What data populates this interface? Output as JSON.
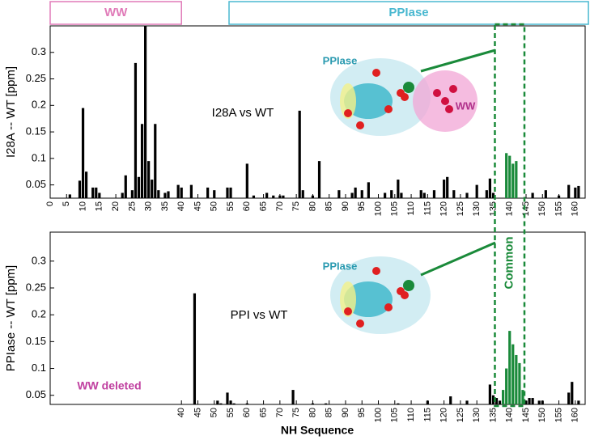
{
  "chart_data": [
    {
      "type": "bar",
      "ylabel": "I28A -- WT  [ppm]",
      "xlim": [
        0,
        163
      ],
      "ylim": [
        0.025,
        0.35
      ],
      "xticks": [
        0,
        5,
        10,
        15,
        20,
        25,
        30,
        35,
        40,
        45,
        50,
        55,
        60,
        65,
        70,
        75,
        80,
        85,
        90,
        95,
        100,
        105,
        110,
        115,
        120,
        125,
        130,
        135,
        140,
        145,
        150,
        155,
        160
      ],
      "yticks": [
        0.05,
        0.1,
        0.15,
        0.2,
        0.25,
        0.3
      ],
      "series": [
        {
          "color": "#000000",
          "x": [
            6,
            9,
            10,
            11,
            13,
            14,
            15,
            22,
            23,
            25,
            26,
            27,
            28,
            29,
            30,
            31,
            32,
            33,
            35,
            36,
            39,
            40,
            43,
            48,
            50,
            54,
            55,
            60,
            62,
            66,
            68,
            70,
            71,
            76,
            77,
            80,
            82,
            88,
            92,
            93,
            95,
            97,
            102,
            104,
            106,
            107,
            113,
            114,
            117,
            120,
            121,
            123,
            127,
            130,
            133,
            134,
            135,
            147,
            151,
            155,
            158,
            160,
            161
          ],
          "values": [
            0.032,
            0.058,
            0.195,
            0.075,
            0.045,
            0.045,
            0.035,
            0.035,
            0.068,
            0.04,
            0.28,
            0.065,
            0.165,
            0.35,
            0.095,
            0.06,
            0.165,
            0.04,
            0.035,
            0.038,
            0.05,
            0.045,
            0.05,
            0.045,
            0.04,
            0.045,
            0.045,
            0.09,
            0.03,
            0.035,
            0.03,
            0.03,
            0.03,
            0.19,
            0.04,
            0.03,
            0.095,
            0.04,
            0.035,
            0.045,
            0.04,
            0.055,
            0.035,
            0.04,
            0.06,
            0.035,
            0.04,
            0.035,
            0.04,
            0.06,
            0.065,
            0.04,
            0.035,
            0.05,
            0.04,
            0.062,
            0.035,
            0.035,
            0.04,
            0.03,
            0.05,
            0.045,
            0.048
          ]
        },
        {
          "color": "#1a8a3a",
          "x": [
            139,
            140,
            141,
            142
          ],
          "values": [
            0.11,
            0.105,
            0.09,
            0.095
          ]
        }
      ],
      "domains": [
        {
          "label": "WW",
          "start": 0,
          "end": 40,
          "color": "#e07ab8"
        },
        {
          "label": "PPIase",
          "start": 54.5,
          "end": 164,
          "color": "#4ab8d0"
        }
      ],
      "annotations": [
        "I28A vs WT",
        "PPIase",
        "WW"
      ]
    },
    {
      "type": "bar",
      "ylabel": "PPIase -- WT   [ppm]",
      "xlabel": "NH Sequence",
      "xlim": [
        0,
        163
      ],
      "ylim": [
        0.033,
        0.354
      ],
      "xticks": [
        40,
        45,
        50,
        55,
        60,
        65,
        70,
        75,
        80,
        85,
        90,
        95,
        100,
        105,
        110,
        115,
        120,
        125,
        130,
        135,
        140,
        145,
        150,
        155,
        160
      ],
      "yticks": [
        0.05,
        0.1,
        0.15,
        0.2,
        0.25,
        0.3
      ],
      "series": [
        {
          "color": "#000000",
          "x": [
            44,
            51,
            52,
            54,
            55,
            56,
            60,
            74,
            80,
            84,
            106,
            115,
            122,
            127,
            134,
            135,
            136,
            137,
            145,
            146,
            147,
            149,
            150,
            158,
            159,
            161
          ],
          "values": [
            0.24,
            0.04,
            0.035,
            0.055,
            0.04,
            0.035,
            0.035,
            0.06,
            0.035,
            0.035,
            0.035,
            0.04,
            0.048,
            0.04,
            0.07,
            0.05,
            0.045,
            0.04,
            0.04,
            0.045,
            0.045,
            0.04,
            0.04,
            0.055,
            0.075,
            0.04
          ]
        },
        {
          "color": "#1a8a3a",
          "x": [
            138,
            139,
            140,
            141,
            142,
            143,
            144
          ],
          "values": [
            0.06,
            0.1,
            0.17,
            0.145,
            0.125,
            0.11,
            0.06
          ]
        }
      ],
      "annotations": [
        "PPI vs WT",
        "WW deleted",
        "PPIase"
      ]
    }
  ],
  "highlight": {
    "label": "Common",
    "start": 135.5,
    "end": 144.5,
    "color": "#1a8a3a"
  }
}
